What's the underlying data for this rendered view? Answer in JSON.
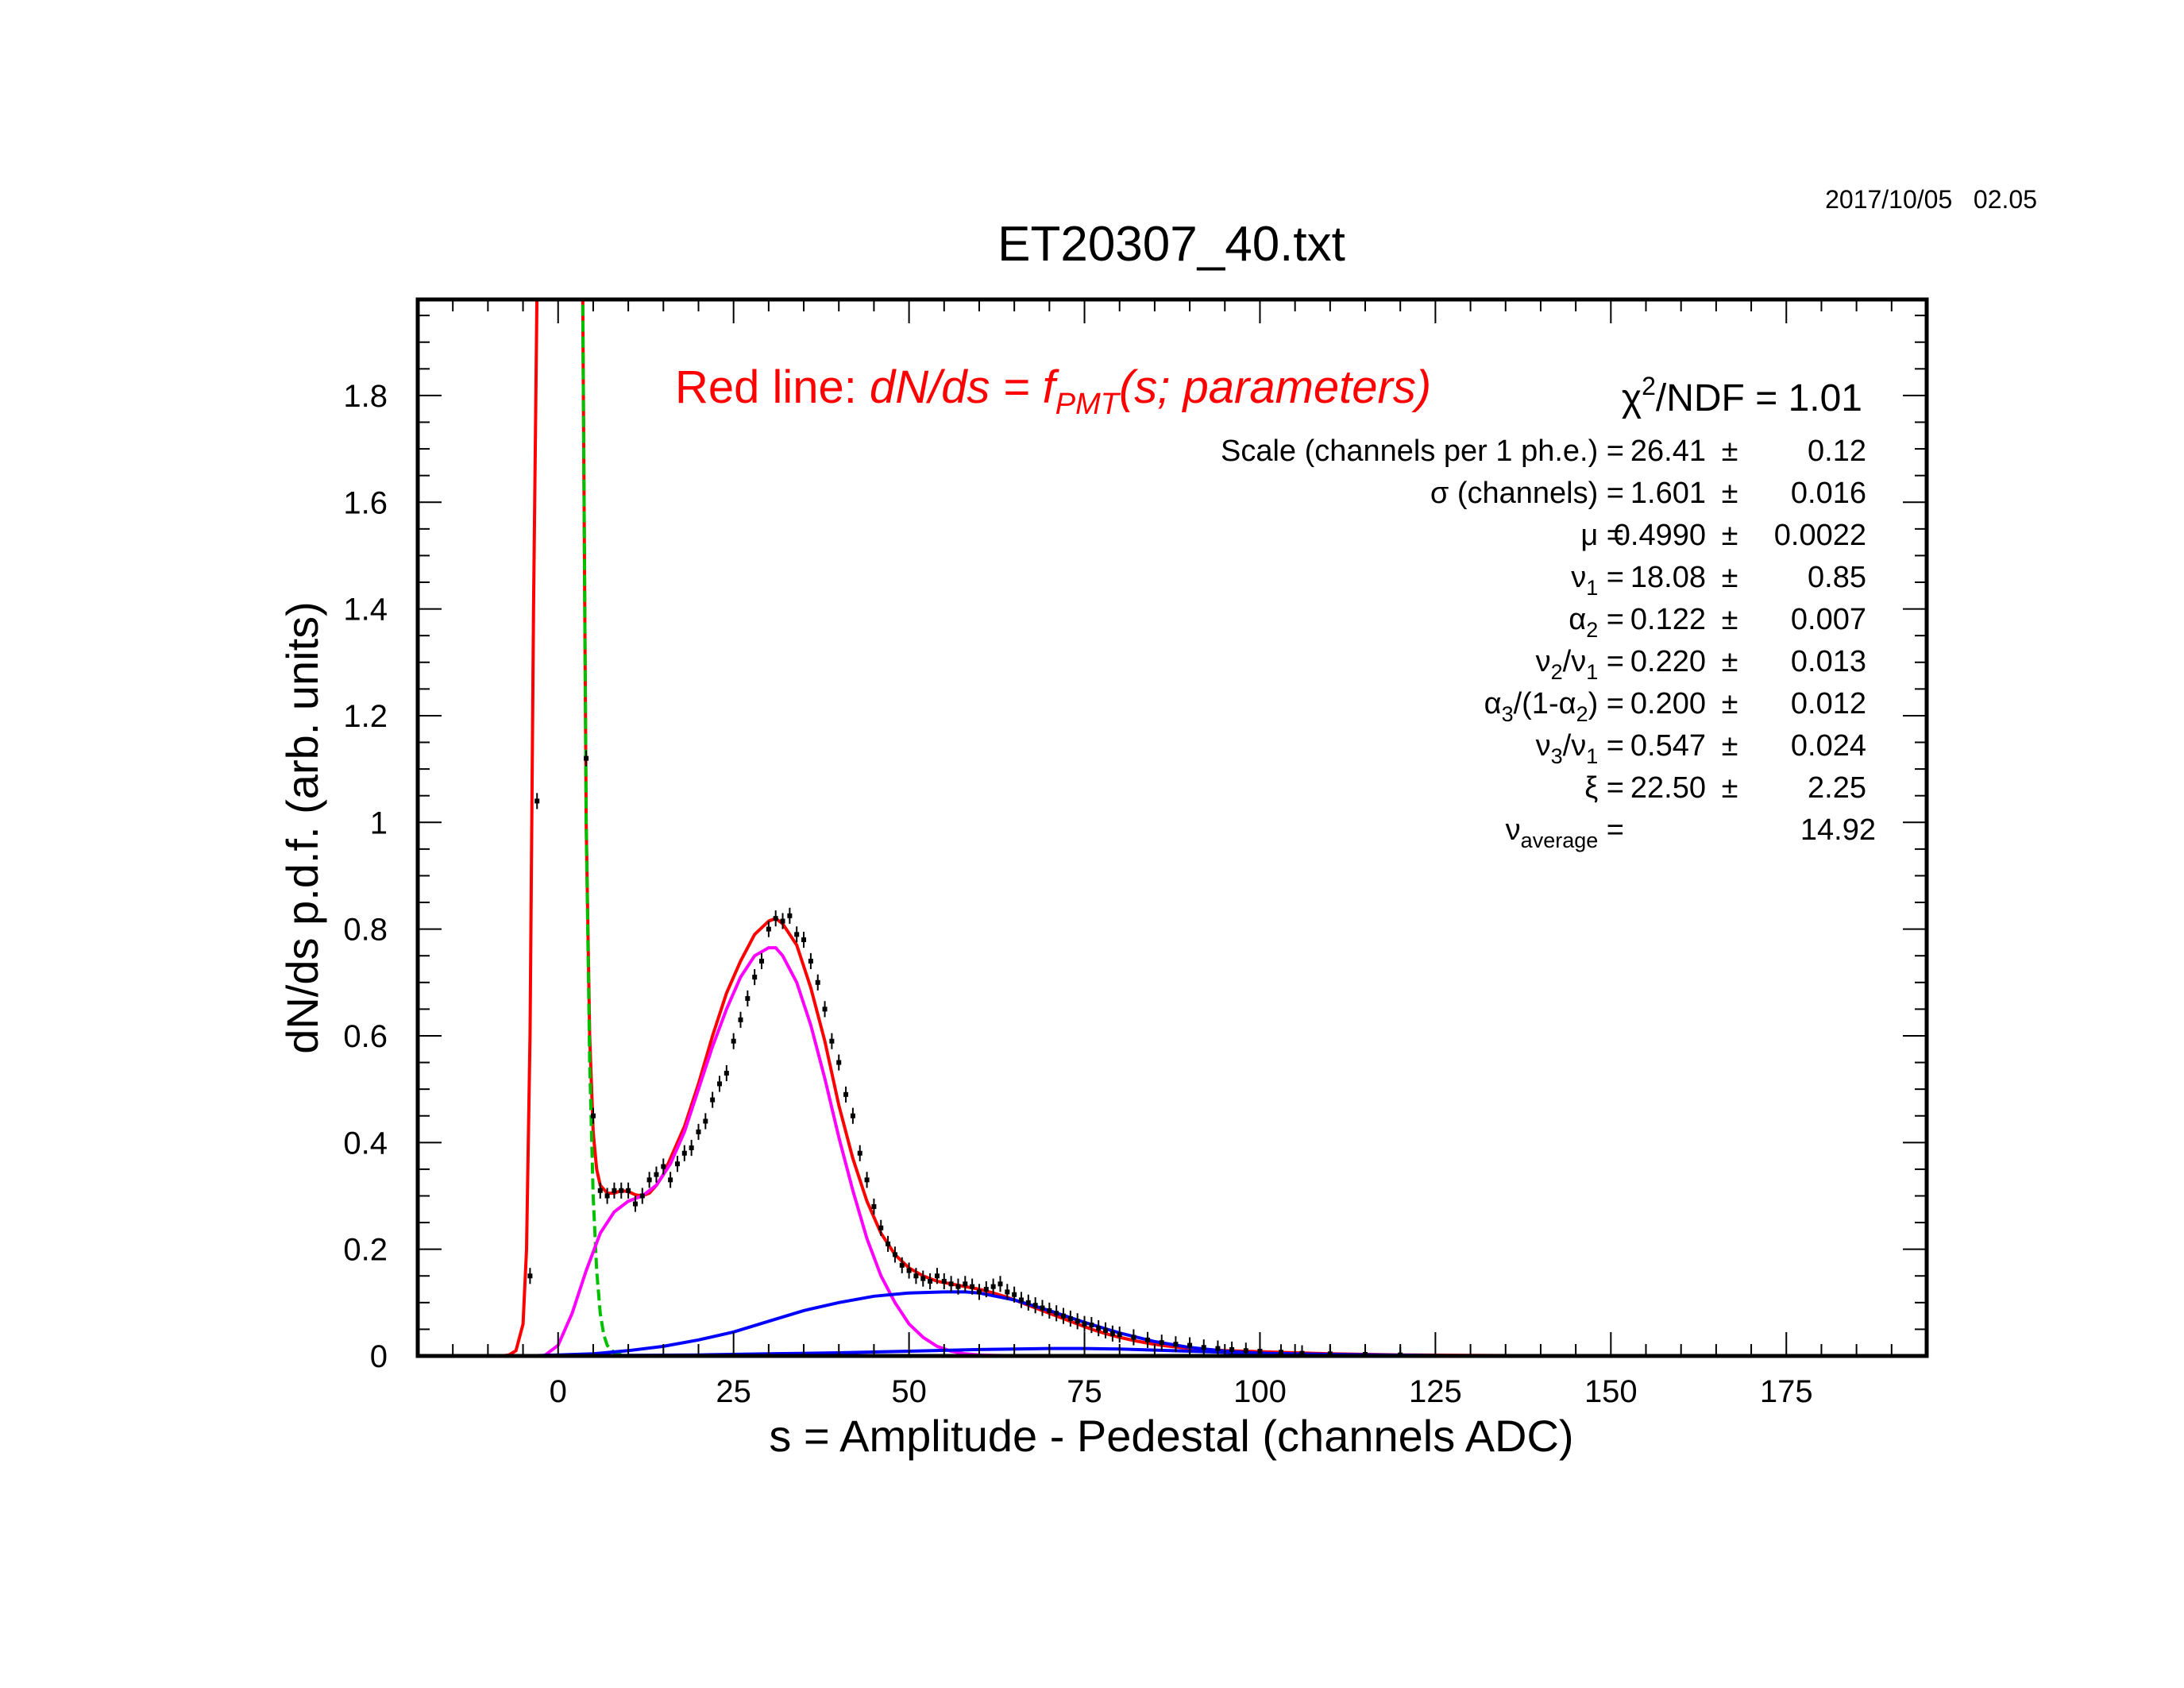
{
  "timestamp": "2017/10/05   02.05",
  "chart_data": {
    "type": "line",
    "title": "ET20307_40.txt",
    "xlabel": "s = Amplitude - Pedestal (channels ADC)",
    "ylabel": "dN/ds p.d.f. (arb. units)",
    "xlim": [
      -20,
      195
    ],
    "ylim": [
      0,
      1.98
    ],
    "x_ticks": [
      0,
      25,
      50,
      75,
      100,
      125,
      150,
      175
    ],
    "y_ticks": [
      0,
      0.2,
      0.4,
      0.6,
      0.8,
      1,
      1.2,
      1.4,
      1.6,
      1.8
    ],
    "y_tick_labels": [
      "0",
      "0.2",
      "0.4",
      "0.6",
      "0.8",
      "1",
      "1.2",
      "1.4",
      "1.6",
      "1.8"
    ],
    "grid": false,
    "legend": {
      "prefix": "Red line: ",
      "formula": "dN/ds = f",
      "subscript": "PMT",
      "suffix": "(s; parameters)",
      "color": "#ff0000"
    },
    "fit_stats": {
      "chi2": {
        "label": "χ",
        "sup": "2",
        "rest": "/NDF   =",
        "value": "1.01"
      },
      "rows": [
        {
          "parts": [
            "Scale (channels per 1 ph.e.) ="
          ],
          "value": "26.41",
          "pm": "±",
          "err": "0.12"
        },
        {
          "parts": [
            "σ (channels) ="
          ],
          "value": "1.601",
          "pm": "±",
          "err": "0.016"
        },
        {
          "parts": [
            "μ  ="
          ],
          "value": "0.4990",
          "pm": "±",
          "err": "0.0022"
        },
        {
          "parts": [
            "ν",
            "1",
            " ="
          ],
          "value": "18.08",
          "pm": "±",
          "err": "0.85"
        },
        {
          "parts": [
            "α",
            "2",
            " ="
          ],
          "value": "0.122",
          "pm": "±",
          "err": "0.007"
        },
        {
          "parts": [
            "ν",
            "2",
            "/ν",
            "1",
            " ="
          ],
          "value": "0.220",
          "pm": "±",
          "err": "0.013"
        },
        {
          "parts": [
            "α",
            "3",
            "/(1-α",
            "2",
            ") ="
          ],
          "value": "0.200",
          "pm": "±",
          "err": "0.012"
        },
        {
          "parts": [
            "ν",
            "3",
            "/ν",
            "1",
            " ="
          ],
          "value": "0.547",
          "pm": "±",
          "err": "0.024"
        },
        {
          "parts": [
            "ξ  ="
          ],
          "value": "22.50",
          "pm": "±",
          "err": "2.25"
        },
        {
          "parts": [
            "ν",
            "average",
            "  ="
          ],
          "value": "14.92",
          "pm": "",
          "err": ""
        }
      ]
    },
    "colors": {
      "total_fit": "#ff0000",
      "pedestal": "#00c000",
      "single_pe": "#ff00ff",
      "background": "#0000ff",
      "data": "#000000"
    },
    "series": [
      {
        "color": "#ff0000",
        "x": [
          -8,
          -7,
          -6,
          -5,
          -4.5,
          -4,
          -3.5,
          -3,
          3.5,
          4,
          4.5,
          5,
          5.5,
          6,
          7,
          8,
          9,
          10,
          11,
          12,
          13,
          14,
          15,
          16,
          18,
          20,
          22,
          24,
          26,
          28,
          30,
          31,
          32,
          34,
          36,
          38,
          40,
          42,
          44,
          46,
          48,
          50,
          52,
          54,
          56,
          58,
          60,
          62,
          64,
          66,
          68,
          70,
          72,
          74,
          76,
          78,
          80,
          82,
          84,
          86,
          88,
          90,
          95,
          100,
          105,
          110,
          115,
          120,
          130,
          140,
          150,
          160,
          170,
          180,
          190
        ],
        "y": [
          0,
          0.002,
          0.01,
          0.06,
          0.2,
          0.6,
          1.4,
          2.0,
          2.0,
          1.0,
          0.6,
          0.42,
          0.35,
          0.32,
          0.305,
          0.305,
          0.31,
          0.308,
          0.302,
          0.3,
          0.305,
          0.32,
          0.34,
          0.37,
          0.43,
          0.51,
          0.6,
          0.68,
          0.74,
          0.79,
          0.815,
          0.82,
          0.81,
          0.77,
          0.69,
          0.59,
          0.47,
          0.37,
          0.29,
          0.23,
          0.19,
          0.165,
          0.15,
          0.14,
          0.135,
          0.13,
          0.125,
          0.118,
          0.11,
          0.1,
          0.09,
          0.08,
          0.07,
          0.06,
          0.05,
          0.042,
          0.035,
          0.029,
          0.024,
          0.02,
          0.017,
          0.014,
          0.01,
          0.008,
          0.006,
          0.004,
          0.003,
          0.002,
          0.001,
          0.0005,
          0.0002,
          0.0001,
          0,
          0,
          0
        ]
      },
      {
        "color": "#00c000",
        "x": [
          3.5,
          4,
          4.5,
          5,
          5.5,
          6,
          6.5,
          7,
          8,
          9,
          10
        ],
        "y": [
          2.0,
          1.0,
          0.55,
          0.3,
          0.16,
          0.08,
          0.04,
          0.02,
          0.006,
          0.002,
          0
        ]
      },
      {
        "color": "#ff00ff",
        "x": [
          -2,
          0,
          2,
          4,
          6,
          8,
          10,
          12,
          14,
          16,
          18,
          20,
          22,
          24,
          26,
          28,
          30,
          31,
          32,
          34,
          36,
          38,
          40,
          42,
          44,
          46,
          48,
          50,
          52,
          54,
          56,
          58,
          60,
          62,
          65,
          70
        ],
        "y": [
          0,
          0.02,
          0.08,
          0.16,
          0.23,
          0.27,
          0.29,
          0.3,
          0.32,
          0.36,
          0.42,
          0.5,
          0.58,
          0.65,
          0.71,
          0.75,
          0.765,
          0.765,
          0.75,
          0.7,
          0.62,
          0.52,
          0.41,
          0.31,
          0.22,
          0.15,
          0.1,
          0.06,
          0.035,
          0.018,
          0.009,
          0.004,
          0.002,
          0.001,
          0.0003,
          0
        ]
      },
      {
        "color": "#0000ff",
        "x": [
          -5,
          0,
          5,
          10,
          15,
          20,
          25,
          30,
          35,
          40,
          45,
          50,
          55,
          58,
          60,
          65,
          70,
          75,
          80,
          85,
          90,
          95,
          100,
          110,
          120,
          130,
          140
        ],
        "y": [
          0,
          0.002,
          0.004,
          0.01,
          0.018,
          0.03,
          0.045,
          0.065,
          0.085,
          0.1,
          0.112,
          0.118,
          0.12,
          0.12,
          0.118,
          0.105,
          0.085,
          0.063,
          0.043,
          0.027,
          0.016,
          0.009,
          0.005,
          0.002,
          0.001,
          0.0003,
          0
        ]
      },
      {
        "color": "#0000ff",
        "x": [
          -5,
          10,
          20,
          30,
          40,
          50,
          60,
          70,
          75,
          80,
          85,
          90,
          100,
          110,
          120,
          130,
          150
        ],
        "y": [
          0,
          0.001,
          0.002,
          0.004,
          0.006,
          0.009,
          0.012,
          0.014,
          0.014,
          0.013,
          0.011,
          0.009,
          0.005,
          0.003,
          0.0015,
          0.0005,
          0
        ]
      }
    ],
    "points": {
      "x": [
        -4,
        -3,
        4,
        5,
        6,
        7,
        8,
        9,
        10,
        11,
        12,
        13,
        14,
        15,
        16,
        17,
        18,
        19,
        20,
        21,
        22,
        23,
        24,
        25,
        26,
        27,
        28,
        29,
        30,
        31,
        32,
        33,
        34,
        35,
        36,
        37,
        38,
        39,
        40,
        41,
        42,
        43,
        44,
        45,
        46,
        47,
        48,
        49,
        50,
        51,
        52,
        53,
        54,
        55,
        56,
        57,
        58,
        59,
        60,
        61,
        62,
        63,
        64,
        65,
        66,
        67,
        68,
        69,
        70,
        71,
        72,
        73,
        74,
        75,
        76,
        77,
        78,
        79,
        80,
        82,
        84,
        86,
        88,
        90,
        92,
        94,
        96,
        98,
        100,
        103,
        106,
        110,
        115,
        120
      ],
      "y": [
        0.15,
        1.04,
        1.12,
        0.45,
        0.31,
        0.3,
        0.31,
        0.31,
        0.31,
        0.285,
        0.3,
        0.33,
        0.34,
        0.355,
        0.33,
        0.36,
        0.38,
        0.39,
        0.42,
        0.44,
        0.48,
        0.51,
        0.53,
        0.59,
        0.63,
        0.67,
        0.71,
        0.74,
        0.8,
        0.82,
        0.815,
        0.825,
        0.79,
        0.78,
        0.74,
        0.7,
        0.65,
        0.59,
        0.55,
        0.49,
        0.45,
        0.38,
        0.33,
        0.28,
        0.24,
        0.21,
        0.19,
        0.17,
        0.16,
        0.15,
        0.145,
        0.14,
        0.15,
        0.14,
        0.135,
        0.13,
        0.135,
        0.13,
        0.12,
        0.125,
        0.13,
        0.135,
        0.12,
        0.115,
        0.105,
        0.1,
        0.095,
        0.09,
        0.085,
        0.08,
        0.075,
        0.07,
        0.065,
        0.06,
        0.058,
        0.052,
        0.048,
        0.042,
        0.04,
        0.035,
        0.03,
        0.025,
        0.022,
        0.02,
        0.016,
        0.014,
        0.012,
        0.01,
        0.009,
        0.007,
        0.005,
        0.004,
        0.003,
        0.002
      ],
      "err": 0.015
    }
  }
}
